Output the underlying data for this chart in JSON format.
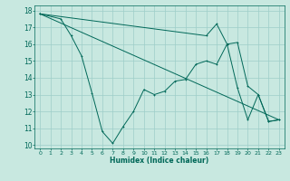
{
  "xlabel": "Humidex (Indice chaleur)",
  "bg_color": "#c8e8e0",
  "grid_color": "#9ecec8",
  "line_color": "#006858",
  "xlim": [
    -0.5,
    23.5
  ],
  "ylim": [
    9.8,
    18.3
  ],
  "xticks": [
    0,
    1,
    2,
    3,
    4,
    5,
    6,
    7,
    8,
    9,
    10,
    11,
    12,
    13,
    14,
    15,
    16,
    17,
    18,
    19,
    20,
    21,
    22,
    23
  ],
  "yticks": [
    10,
    11,
    12,
    13,
    14,
    15,
    16,
    17,
    18
  ],
  "lines": [
    {
      "x": [
        0,
        2,
        3,
        4,
        5,
        6,
        7,
        8,
        9,
        10,
        11,
        12,
        13,
        14,
        15,
        16,
        17,
        18,
        19,
        20,
        21,
        22,
        23
      ],
      "y": [
        17.8,
        17.5,
        16.5,
        15.3,
        13.1,
        10.8,
        10.1,
        11.1,
        12.0,
        13.3,
        13.0,
        13.2,
        13.8,
        13.9,
        14.8,
        15.0,
        14.8,
        16.0,
        13.4,
        11.5,
        13.0,
        11.4,
        11.5
      ],
      "marker": true
    },
    {
      "x": [
        0,
        23
      ],
      "y": [
        17.8,
        11.5
      ],
      "marker": false
    },
    {
      "x": [
        0,
        16,
        17,
        18,
        19,
        20,
        21,
        22,
        23
      ],
      "y": [
        17.8,
        16.5,
        17.2,
        16.0,
        16.1,
        13.5,
        13.0,
        11.4,
        11.5
      ],
      "marker": true
    }
  ]
}
